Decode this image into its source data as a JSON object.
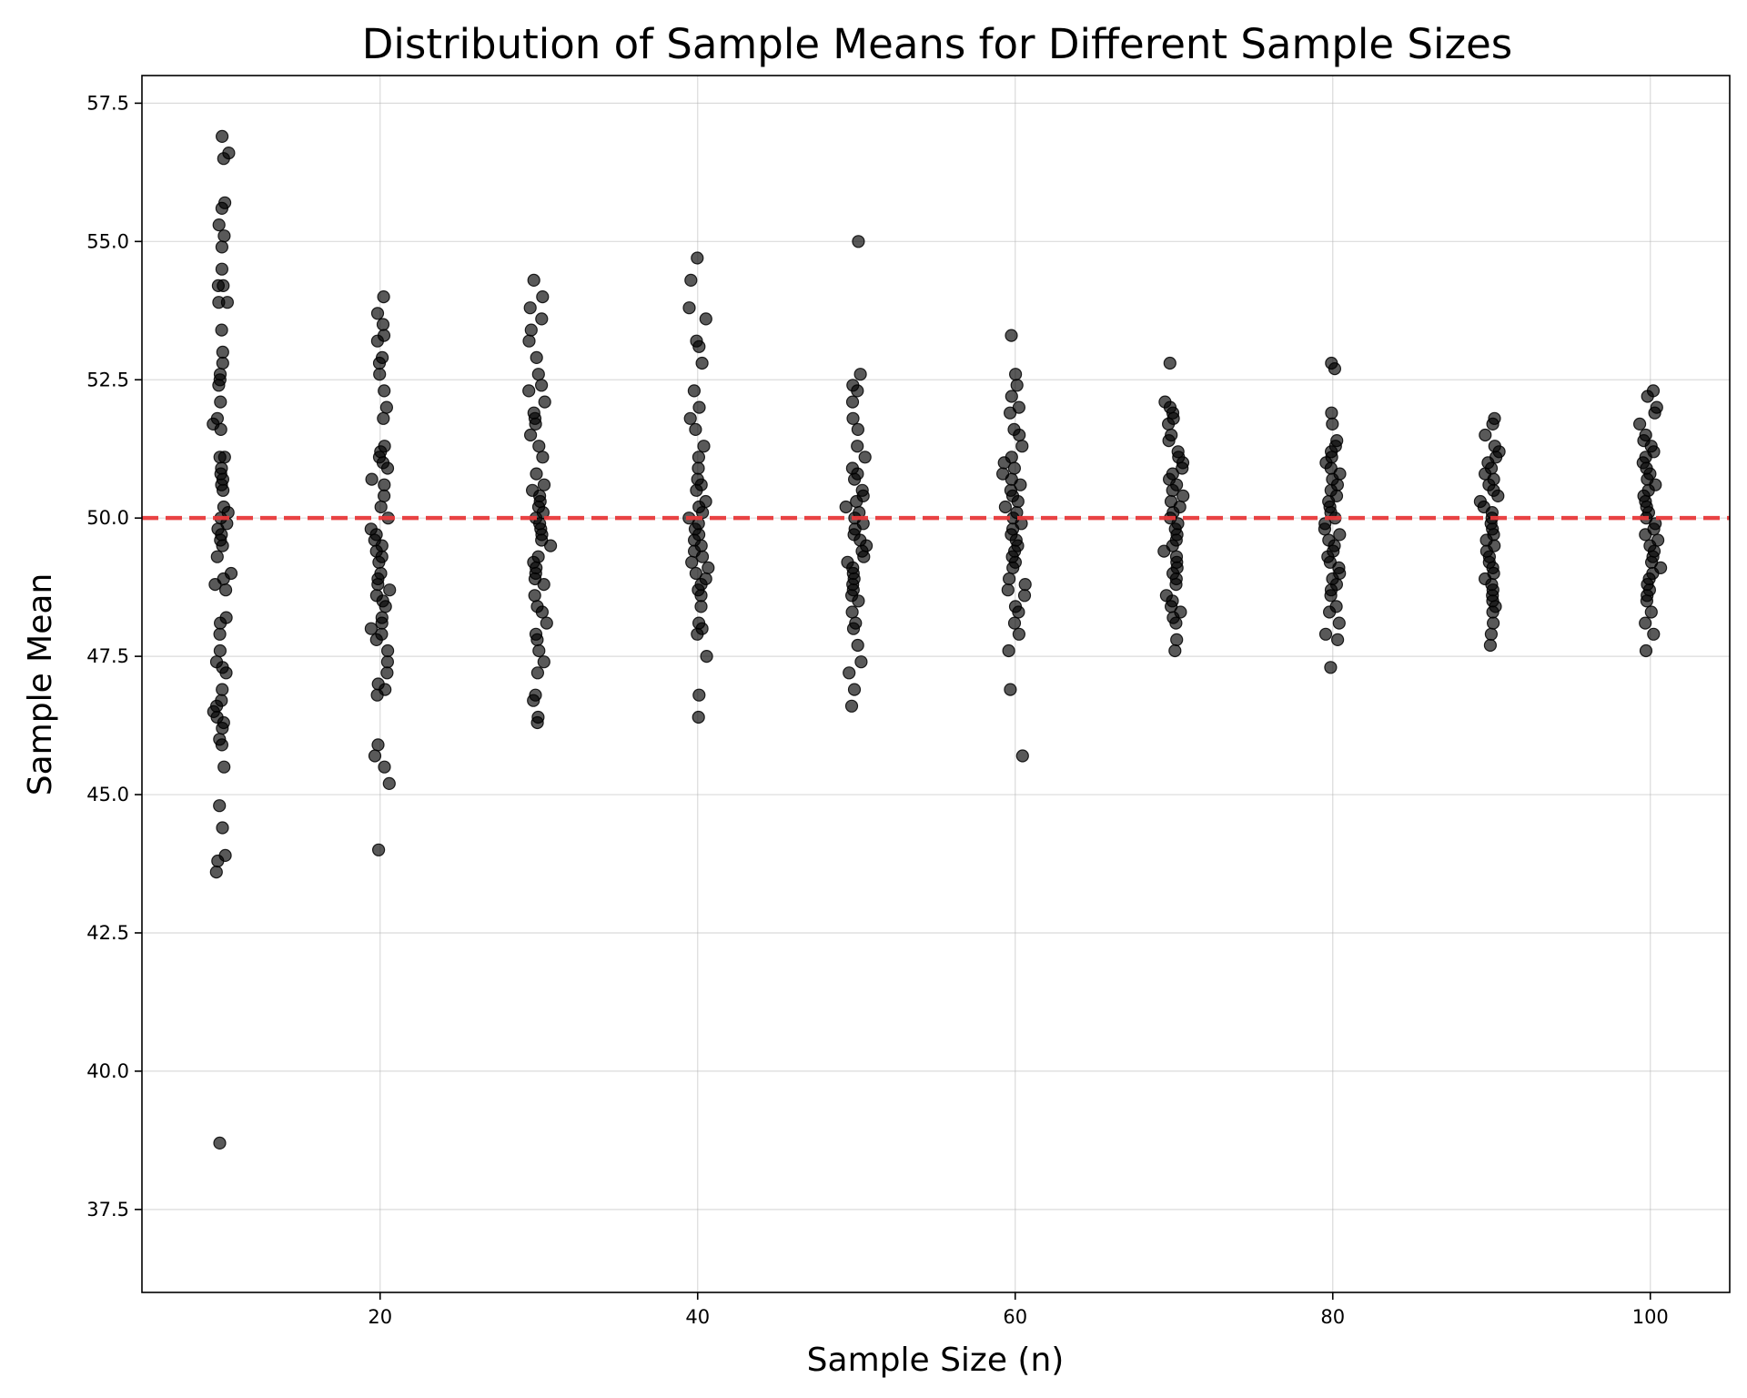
{
  "chart_data": {
    "type": "scatter",
    "title": "Distribution of Sample Means for Different Sample Sizes",
    "xlabel": "Sample Size (n)",
    "ylabel": "Sample Mean",
    "xlim": [
      5,
      105
    ],
    "ylim": [
      36.0,
      58.0
    ],
    "xticks": [
      20,
      40,
      60,
      80,
      100
    ],
    "xtick_labels": [
      "20",
      "40",
      "60",
      "80",
      "100"
    ],
    "yticks": [
      37.5,
      40.0,
      42.5,
      45.0,
      47.5,
      50.0,
      52.5,
      55.0,
      57.5
    ],
    "ytick_labels": [
      "37.5",
      "40.0",
      "42.5",
      "45.0",
      "47.5",
      "50.0",
      "52.5",
      "55.0",
      "57.5"
    ],
    "grid": true,
    "reference_line": {
      "y": 50.0,
      "style": "dashed",
      "color": "#e8393a"
    },
    "point_color": "#000000",
    "point_opacity": 0.65,
    "groups": [
      {
        "n": 10,
        "values": [
          56.9,
          56.6,
          56.5,
          55.7,
          55.6,
          55.3,
          55.1,
          54.9,
          54.5,
          54.2,
          54.2,
          53.9,
          53.9,
          53.4,
          53.0,
          52.8,
          52.6,
          52.5,
          52.4,
          52.1,
          51.8,
          51.7,
          51.6,
          51.1,
          51.1,
          50.9,
          50.8,
          50.7,
          50.6,
          50.5,
          50.2,
          50.1,
          50.0,
          49.9,
          49.8,
          49.7,
          49.6,
          49.5,
          49.3,
          49.0,
          48.9,
          48.8,
          48.7,
          48.2,
          48.1,
          47.9,
          47.6,
          47.4,
          47.3,
          47.2,
          46.9,
          46.7,
          46.6,
          46.5,
          46.4,
          46.3,
          46.2,
          46.0,
          45.9,
          45.5,
          44.8,
          44.4,
          43.9,
          43.8,
          43.6,
          38.7
        ]
      },
      {
        "n": 20,
        "values": [
          54.0,
          53.7,
          53.5,
          53.3,
          53.2,
          52.9,
          52.8,
          52.6,
          52.3,
          52.0,
          51.8,
          51.3,
          51.2,
          51.1,
          51.0,
          50.9,
          50.7,
          50.6,
          50.4,
          50.2,
          50.0,
          49.8,
          49.7,
          49.6,
          49.5,
          49.4,
          49.3,
          49.2,
          49.0,
          48.9,
          48.8,
          48.7,
          48.6,
          48.5,
          48.4,
          48.2,
          48.1,
          48.0,
          47.9,
          47.8,
          47.6,
          47.4,
          47.2,
          47.0,
          46.9,
          46.8,
          45.9,
          45.7,
          45.5,
          45.2,
          44.0
        ]
      },
      {
        "n": 30,
        "values": [
          54.3,
          54.0,
          53.8,
          53.6,
          53.4,
          53.2,
          52.9,
          52.6,
          52.4,
          52.3,
          52.1,
          51.9,
          51.8,
          51.7,
          51.5,
          51.3,
          51.1,
          50.8,
          50.6,
          50.5,
          50.4,
          50.3,
          50.2,
          50.1,
          50.0,
          49.9,
          49.8,
          49.7,
          49.6,
          49.5,
          49.3,
          49.2,
          49.1,
          49.0,
          48.9,
          48.8,
          48.6,
          48.4,
          48.3,
          48.1,
          47.9,
          47.8,
          47.6,
          47.4,
          47.2,
          46.8,
          46.7,
          46.4,
          46.3
        ]
      },
      {
        "n": 40,
        "values": [
          54.7,
          54.3,
          53.8,
          53.6,
          53.2,
          53.1,
          52.8,
          52.3,
          52.0,
          51.8,
          51.6,
          51.3,
          51.1,
          50.9,
          50.7,
          50.6,
          50.5,
          50.3,
          50.2,
          50.1,
          50.0,
          49.9,
          49.8,
          49.7,
          49.6,
          49.5,
          49.4,
          49.3,
          49.2,
          49.1,
          49.0,
          48.9,
          48.8,
          48.7,
          48.6,
          48.4,
          48.1,
          48.0,
          47.9,
          47.5,
          46.8,
          46.4
        ]
      },
      {
        "n": 50,
        "values": [
          55.0,
          52.6,
          52.4,
          52.3,
          52.1,
          51.8,
          51.6,
          51.3,
          51.1,
          50.9,
          50.8,
          50.7,
          50.5,
          50.4,
          50.3,
          50.2,
          50.1,
          50.0,
          49.9,
          49.8,
          49.7,
          49.6,
          49.5,
          49.4,
          49.3,
          49.2,
          49.1,
          49.0,
          48.9,
          48.8,
          48.7,
          48.6,
          48.5,
          48.3,
          48.1,
          48.0,
          47.7,
          47.4,
          47.2,
          46.9,
          46.6
        ]
      },
      {
        "n": 60,
        "values": [
          53.3,
          52.6,
          52.4,
          52.2,
          52.0,
          51.9,
          51.6,
          51.5,
          51.3,
          51.1,
          51.0,
          50.9,
          50.8,
          50.7,
          50.6,
          50.5,
          50.4,
          50.3,
          50.2,
          50.1,
          50.0,
          49.9,
          49.8,
          49.7,
          49.6,
          49.5,
          49.4,
          49.3,
          49.2,
          49.1,
          48.9,
          48.8,
          48.7,
          48.6,
          48.4,
          48.3,
          48.1,
          47.9,
          47.6,
          46.9,
          45.7
        ]
      },
      {
        "n": 70,
        "values": [
          52.8,
          52.1,
          52.0,
          51.9,
          51.8,
          51.7,
          51.5,
          51.4,
          51.2,
          51.1,
          51.0,
          50.9,
          50.8,
          50.7,
          50.6,
          50.5,
          50.4,
          50.3,
          50.2,
          50.1,
          50.0,
          49.9,
          49.8,
          49.7,
          49.6,
          49.5,
          49.4,
          49.3,
          49.2,
          49.1,
          49.0,
          48.9,
          48.8,
          48.6,
          48.5,
          48.4,
          48.3,
          48.2,
          48.1,
          47.8,
          47.6
        ]
      },
      {
        "n": 80,
        "values": [
          52.8,
          52.7,
          51.9,
          51.7,
          51.4,
          51.3,
          51.2,
          51.1,
          51.0,
          50.9,
          50.8,
          50.7,
          50.6,
          50.5,
          50.4,
          50.3,
          50.2,
          50.1,
          50.0,
          49.9,
          49.8,
          49.7,
          49.6,
          49.5,
          49.4,
          49.3,
          49.2,
          49.1,
          49.0,
          48.9,
          48.8,
          48.7,
          48.6,
          48.4,
          48.3,
          48.1,
          47.9,
          47.8,
          47.3
        ]
      },
      {
        "n": 90,
        "values": [
          51.8,
          51.7,
          51.5,
          51.3,
          51.2,
          51.1,
          51.0,
          50.9,
          50.8,
          50.7,
          50.6,
          50.5,
          50.4,
          50.3,
          50.2,
          50.1,
          50.0,
          49.9,
          49.8,
          49.7,
          49.6,
          49.5,
          49.4,
          49.3,
          49.2,
          49.1,
          49.0,
          48.9,
          48.8,
          48.7,
          48.6,
          48.5,
          48.4,
          48.3,
          48.1,
          47.9,
          47.7
        ]
      },
      {
        "n": 100,
        "values": [
          52.3,
          52.2,
          52.0,
          51.9,
          51.7,
          51.5,
          51.4,
          51.3,
          51.2,
          51.1,
          51.0,
          50.9,
          50.8,
          50.7,
          50.6,
          50.5,
          50.4,
          50.3,
          50.2,
          50.1,
          50.0,
          49.9,
          49.8,
          49.7,
          49.6,
          49.5,
          49.4,
          49.3,
          49.2,
          49.1,
          49.0,
          48.9,
          48.8,
          48.7,
          48.6,
          48.5,
          48.3,
          48.1,
          47.9,
          47.6
        ]
      }
    ]
  }
}
